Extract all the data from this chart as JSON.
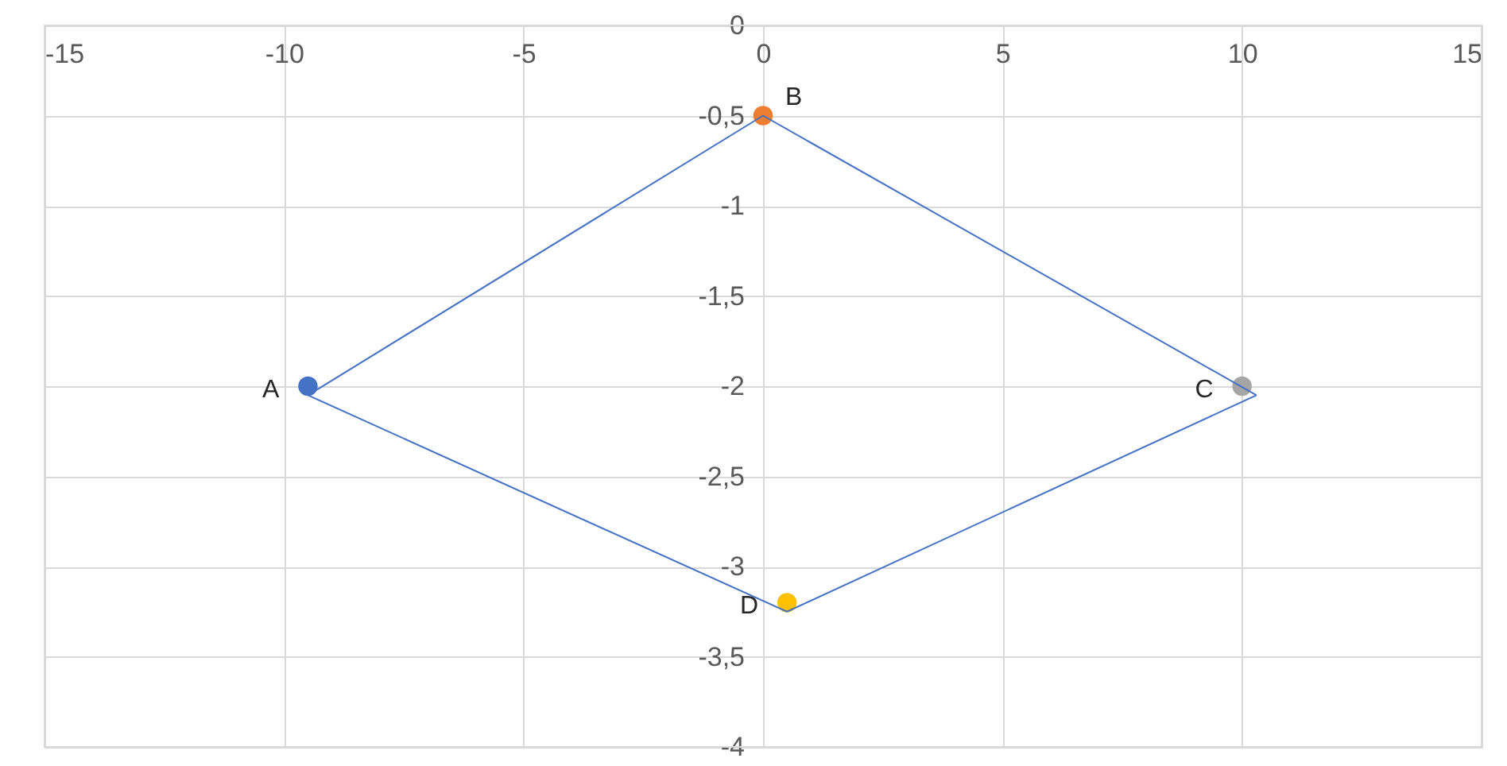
{
  "chart_data": {
    "type": "scatter",
    "xlim": [
      -15,
      15
    ],
    "ylim": [
      -4,
      0
    ],
    "xticks": [
      -15,
      -10,
      -5,
      0,
      5,
      10,
      15
    ],
    "yticks": [
      0,
      {
        "value": -0.5,
        "label": "-0,5"
      },
      -1,
      {
        "value": -1.5,
        "label": "-1,5"
      },
      -2,
      {
        "value": -2.5,
        "label": "-2,5"
      },
      -3,
      {
        "value": -3.5,
        "label": "-3,5"
      },
      -4
    ],
    "grid": true,
    "marker": "circle",
    "series": [
      {
        "name": "A",
        "color": "#4472c4",
        "x": [
          -9.5
        ],
        "values": [
          -2
        ]
      },
      {
        "name": "B",
        "color": "#ed7d31",
        "x": [
          0
        ],
        "values": [
          -0.5
        ]
      },
      {
        "name": "C",
        "color": "#a5a5a5",
        "x": [
          10
        ],
        "values": [
          -2
        ]
      },
      {
        "name": "D",
        "color": "#ffc000",
        "x": [
          0.5
        ],
        "values": [
          -3.2
        ]
      },
      {
        "type": "line",
        "color": "#4472c4",
        "x": [
          -9.5,
          0
        ],
        "values": [
          -2.05,
          -0.5
        ],
        "marker": "none"
      },
      {
        "type": "line",
        "color": "#4472c4",
        "x": [
          0,
          10.3
        ],
        "values": [
          -0.5,
          -2.05
        ],
        "marker": "none"
      },
      {
        "type": "line",
        "color": "#4472c4",
        "x": [
          -9.5,
          0.5
        ],
        "values": [
          -2.05,
          -3.25
        ],
        "marker": "none"
      },
      {
        "type": "line",
        "color": "#4472c4",
        "x": [
          0.5,
          10.3
        ],
        "values": [
          -3.25,
          -2.05
        ],
        "marker": "none"
      }
    ]
  }
}
